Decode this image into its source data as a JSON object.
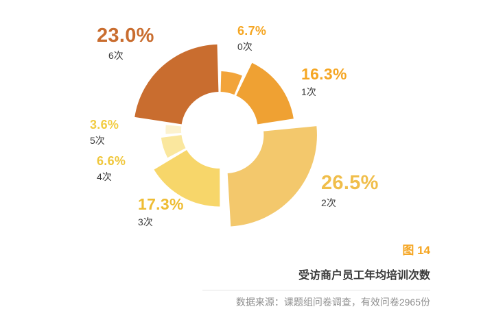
{
  "chart_data": {
    "type": "pie",
    "subtype": "donut-rose",
    "title": "受访商户员工年均培训次数",
    "figure_label": "图 14",
    "source": "数据来源：课题组问卷调查，有效问卷2965份",
    "legend_position": "around-labels",
    "total": 100,
    "segments": [
      {
        "label": "0次",
        "value": 6.7,
        "pct_text": "6.7%",
        "color": "#F2A43A",
        "label_color": "#F5A623",
        "exploded": false
      },
      {
        "label": "1次",
        "value": 16.3,
        "pct_text": "16.3%",
        "color": "#EFA133",
        "label_color": "#F5A623",
        "exploded": false
      },
      {
        "label": "2次",
        "value": 26.5,
        "pct_text": "26.5%",
        "color": "#F3C86C",
        "label_color": "#F0BE4B",
        "exploded": true
      },
      {
        "label": "3次",
        "value": 17.3,
        "pct_text": "17.3%",
        "color": "#F7D66A",
        "label_color": "#EEBC33",
        "exploded": false
      },
      {
        "label": "4次",
        "value": 6.6,
        "pct_text": "6.6%",
        "color": "#FAE79E",
        "label_color": "#F0C73C",
        "exploded": false
      },
      {
        "label": "5次",
        "value": 3.6,
        "pct_text": "3.6%",
        "color": "#FCF2CF",
        "label_color": "#F2CC41",
        "exploded": false
      },
      {
        "label": "6次",
        "value": 23.0,
        "pct_text": "23.0%",
        "color": "#C96D2F",
        "label_color": "#C96D2F",
        "exploded": false
      }
    ]
  }
}
